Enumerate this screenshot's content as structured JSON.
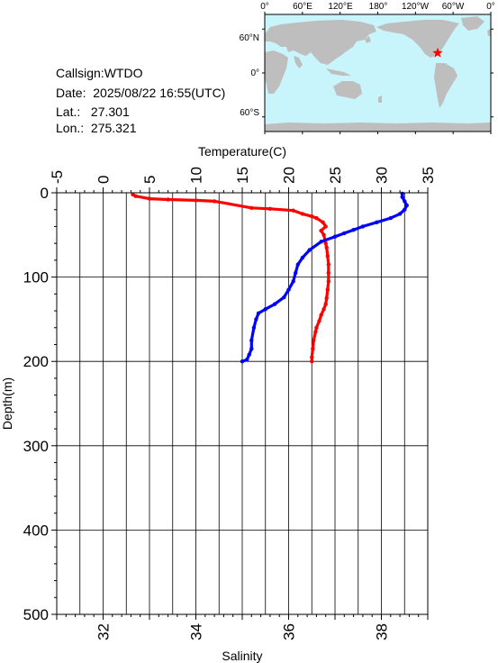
{
  "station": {
    "callsign_label": "Callsign:",
    "callsign": "WTDO",
    "date_label": "Date:",
    "date": "2025/08/22 16:55(UTC)",
    "lat_label": "Lat.:",
    "lat": "27.301",
    "lon_label": "Lon.:",
    "lon": "275.321"
  },
  "map": {
    "top_ticks": [
      "0°",
      "60°E",
      "120°E",
      "180°",
      "120°W",
      "60°W",
      "0°"
    ],
    "left_ticks": [
      "60°N",
      "0°",
      "60°S"
    ],
    "ocean_color": "#c8f4fc",
    "land_color": "#bebebe",
    "marker_color": "#ff0000",
    "marker": {
      "lon": 275.321,
      "lat": 27.301
    }
  },
  "chart_data": {
    "type": "line",
    "title": "",
    "ylabel": "Depth(m)",
    "ylim": [
      0,
      500
    ],
    "y_ticks": [
      0,
      100,
      200,
      300,
      400,
      500
    ],
    "top_axis": {
      "label": "Temperature(C)",
      "xlim": [
        -5,
        35
      ],
      "ticks": [
        -5,
        0,
        5,
        10,
        15,
        20,
        25,
        30,
        35
      ]
    },
    "bottom_axis": {
      "label": "Salinity",
      "xlim": [
        31.0,
        39.0
      ],
      "ticks": [
        32,
        34,
        36,
        38
      ]
    },
    "grid": true,
    "series": [
      {
        "axis": "top",
        "color": "#ff0000",
        "points": [
          [
            22.5,
            200
          ],
          [
            22.5,
            195
          ],
          [
            22.6,
            185
          ],
          [
            22.7,
            175
          ],
          [
            22.9,
            165
          ],
          [
            23.0,
            160
          ],
          [
            23.3,
            152
          ],
          [
            23.5,
            145
          ],
          [
            23.8,
            138
          ],
          [
            24.0,
            132
          ],
          [
            24.1,
            125
          ],
          [
            24.2,
            115
          ],
          [
            24.3,
            105
          ],
          [
            24.3,
            95
          ],
          [
            24.3,
            85
          ],
          [
            24.2,
            75
          ],
          [
            24.1,
            65
          ],
          [
            24.0,
            60
          ],
          [
            23.8,
            50
          ],
          [
            23.5,
            45
          ],
          [
            24.0,
            40
          ],
          [
            23.7,
            35
          ],
          [
            23.0,
            30
          ],
          [
            22.5,
            28
          ],
          [
            21.5,
            25
          ],
          [
            20.5,
            21
          ],
          [
            18.0,
            19
          ],
          [
            16.0,
            18
          ],
          [
            12.0,
            10
          ],
          [
            10.0,
            9
          ],
          [
            7.0,
            8
          ],
          [
            5.0,
            7
          ],
          [
            3.5,
            4
          ],
          [
            3.2,
            2
          ]
        ]
      },
      {
        "axis": "bottom",
        "color": "#0000ff",
        "points": [
          [
            35.0,
            200
          ],
          [
            35.1,
            198
          ],
          [
            35.15,
            192
          ],
          [
            35.2,
            185
          ],
          [
            35.2,
            175
          ],
          [
            35.25,
            160
          ],
          [
            35.3,
            150
          ],
          [
            35.35,
            143
          ],
          [
            35.5,
            138
          ],
          [
            35.7,
            132
          ],
          [
            35.9,
            124
          ],
          [
            36.0,
            115
          ],
          [
            36.1,
            105
          ],
          [
            36.15,
            95
          ],
          [
            36.2,
            85
          ],
          [
            36.3,
            77
          ],
          [
            36.45,
            68
          ],
          [
            36.7,
            58
          ],
          [
            37.0,
            52
          ],
          [
            37.2,
            48
          ],
          [
            37.4,
            44
          ],
          [
            37.6,
            40
          ],
          [
            37.9,
            35
          ],
          [
            38.2,
            30
          ],
          [
            38.4,
            25
          ],
          [
            38.5,
            20
          ],
          [
            38.55,
            15
          ],
          [
            38.5,
            10
          ],
          [
            38.45,
            5
          ],
          [
            38.45,
            1
          ]
        ]
      }
    ]
  }
}
